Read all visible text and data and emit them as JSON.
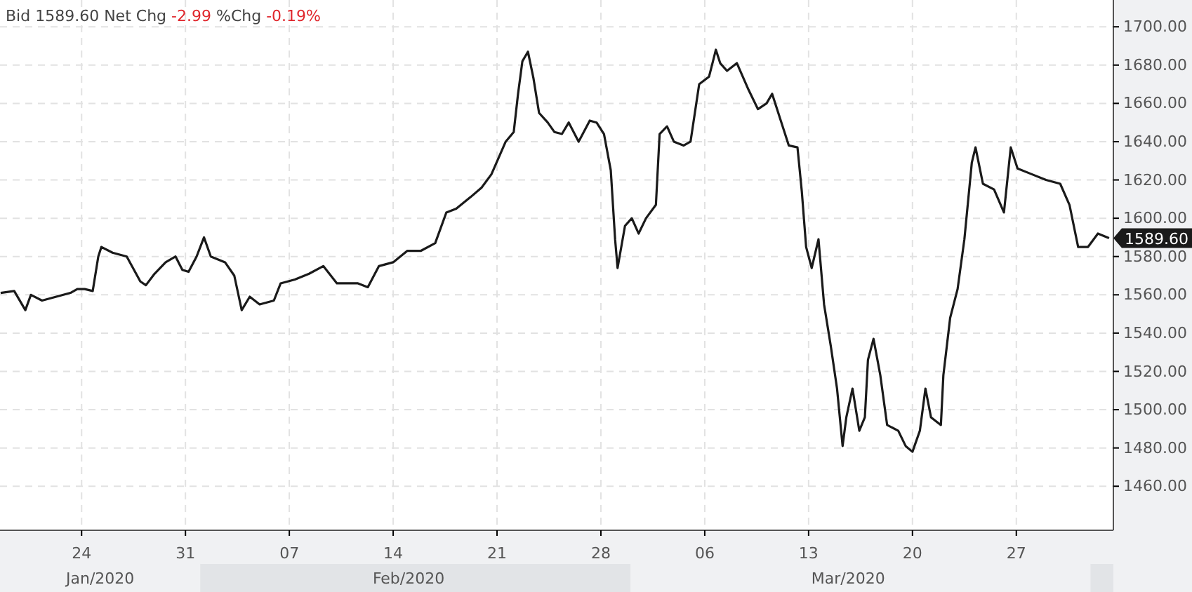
{
  "chart_data": {
    "type": "line",
    "title": "Bid 1589.60 Net Chg -2.99 %Chg -0.19%",
    "x": [
      "2020-01-18T13:00",
      "2020-01-19T11:00",
      "2020-01-20T05:00",
      "2020-01-20T14:00",
      "2020-01-21T08:00",
      "2020-01-22T07:00",
      "2020-01-23T06:00",
      "2020-01-23T17:00",
      "2020-01-24T05:00",
      "2020-01-24T18:00",
      "2020-01-25T03:00",
      "2020-01-25T08:00",
      "2020-01-26T02:00",
      "2020-01-27T01:00",
      "2020-01-27T23:00",
      "2020-01-28T08:00",
      "2020-01-28T22:00",
      "2020-01-29T16:00",
      "2020-01-30T08:00",
      "2020-01-30T19:00",
      "2020-01-31T05:00",
      "2020-01-31T18:00",
      "2020-02-01T06:00",
      "2020-02-01T17:00",
      "2020-02-02T16:00",
      "2020-02-03T07:00",
      "2020-02-03T19:00",
      "2020-02-04T08:00",
      "2020-02-05T00:00",
      "2020-02-05T23:00",
      "2020-02-06T10:00",
      "2020-02-07T09:00",
      "2020-02-08T08:00",
      "2020-02-09T07:00",
      "2020-02-10T05:00",
      "2020-02-11T15:00",
      "2020-02-12T07:00",
      "2020-02-13T01:00",
      "2020-02-14T00:00",
      "2020-02-14T23:00",
      "2020-02-15T21:00",
      "2020-02-16T20:00",
      "2020-02-17T14:00",
      "2020-02-18T06:00",
      "2020-02-19T05:00",
      "2020-02-19T23:00",
      "2020-02-20T15:00",
      "2020-02-21T14:00",
      "2020-02-22T03:00",
      "2020-02-22T10:00",
      "2020-02-22T17:00",
      "2020-02-23T02:00",
      "2020-02-23T11:00",
      "2020-02-23T20:00",
      "2020-02-24T10:00",
      "2020-02-24T21:00",
      "2020-02-25T09:00",
      "2020-02-25T20:00",
      "2020-02-26T12:00",
      "2020-02-27T06:00",
      "2020-02-27T17:00",
      "2020-02-28T05:00",
      "2020-02-28T16:00",
      "2020-02-28T23:00",
      "2020-02-29T03:00",
      "2020-02-29T15:00",
      "2020-03-01T02:00",
      "2020-03-01T13:00",
      "2020-03-02T01:00",
      "2020-03-02T17:00",
      "2020-03-02T23:00",
      "2020-03-03T11:00",
      "2020-03-03T22:00",
      "2020-03-04T14:00",
      "2020-03-05T01:00",
      "2020-03-05T15:00",
      "2020-03-06T07:00",
      "2020-03-06T18:00",
      "2020-03-07T01:00",
      "2020-03-07T12:00",
      "2020-03-08T04:00",
      "2020-03-08T23:00",
      "2020-03-09T14:00",
      "2020-03-10T04:00",
      "2020-03-10T13:00",
      "2020-03-11T03:00",
      "2020-03-11T16:00",
      "2020-03-12T06:00",
      "2020-03-12T13:00",
      "2020-03-12T20:00",
      "2020-03-13T05:00",
      "2020-03-13T16:00",
      "2020-03-14T01:00",
      "2020-03-14T12:00",
      "2020-03-14T22:00",
      "2020-03-15T07:00",
      "2020-03-15T13:00",
      "2020-03-15T23:00",
      "2020-03-16T10:00",
      "2020-03-16T19:00",
      "2020-03-17T00:00",
      "2020-03-17T09:00",
      "2020-03-17T20:00",
      "2020-03-18T07:00",
      "2020-03-19T01:00",
      "2020-03-19T13:00",
      "2020-03-20T00:00",
      "2020-03-20T12:00",
      "2020-03-20T21:00",
      "2020-03-21T06:00",
      "2020-03-21T22:00",
      "2020-03-22T02:00",
      "2020-03-22T13:00",
      "2020-03-23T01:00",
      "2020-03-23T12:00",
      "2020-03-24T00:00",
      "2020-03-24T06:00",
      "2020-03-24T18:00",
      "2020-03-25T12:00",
      "2020-03-26T04:00",
      "2020-03-26T15:00",
      "2020-03-27T02:00",
      "2020-03-28T01:00",
      "2020-03-29T00:00",
      "2020-03-29T23:00",
      "2020-03-30T14:00",
      "2020-03-31T04:00",
      "2020-03-31T20:00",
      "2020-04-01T12:00",
      "2020-04-02T06:00"
    ],
    "series": [
      {
        "color": "#1a1a1a",
        "values": [
          1561,
          1562,
          1552,
          1560,
          1557,
          1559,
          1561,
          1563,
          1563,
          1562,
          1580,
          1585,
          1582,
          1580,
          1567,
          1565,
          1571,
          1577,
          1580,
          1573,
          1572,
          1580,
          1590,
          1580,
          1577,
          1570,
          1552,
          1559,
          1555,
          1557,
          1566,
          1568,
          1571,
          1575,
          1566,
          1566,
          1564,
          1575,
          1577,
          1583,
          1583,
          1587,
          1603,
          1605,
          1611,
          1616,
          1623,
          1640,
          1645,
          1665,
          1682,
          1687,
          1673,
          1655,
          1650,
          1645,
          1644,
          1650,
          1640,
          1651,
          1650,
          1644,
          1625,
          1589,
          1574,
          1596,
          1600,
          1592,
          1600,
          1607,
          1644,
          1648,
          1640,
          1638,
          1640,
          1670,
          1674,
          1688,
          1681,
          1677,
          1681,
          1667,
          1657,
          1660,
          1665,
          1651,
          1638,
          1637,
          1614,
          1585,
          1574,
          1589,
          1555,
          1533,
          1511,
          1481,
          1496,
          1511,
          1489,
          1496,
          1526,
          1537,
          1518,
          1492,
          1489,
          1481,
          1478,
          1489,
          1511,
          1496,
          1492,
          1518,
          1548,
          1563,
          1589,
          1629,
          1637,
          1618,
          1615,
          1603,
          1637,
          1626,
          1623,
          1620,
          1618,
          1607,
          1585,
          1585,
          1592,
          1589.6
        ]
      }
    ],
    "xlim": [
      "2020-01-18T12:00",
      "2020-04-02T13:00"
    ],
    "xticks": [
      {
        "value": "2020-01-24",
        "label": "24"
      },
      {
        "value": "2020-01-31",
        "label": "31"
      },
      {
        "value": "2020-02-07",
        "label": "07"
      },
      {
        "value": "2020-02-14",
        "label": "14"
      },
      {
        "value": "2020-02-21",
        "label": "21"
      },
      {
        "value": "2020-02-28",
        "label": "28"
      },
      {
        "value": "2020-03-06",
        "label": "06"
      },
      {
        "value": "2020-03-13",
        "label": "13"
      },
      {
        "value": "2020-03-20",
        "label": "20"
      },
      {
        "value": "2020-03-27",
        "label": "27"
      }
    ],
    "x2lim": [
      "2020-01-18T12:00",
      "2020-04-02T13:00"
    ],
    "x2ticks": [
      {
        "value": "2020-01-25T06:00",
        "label": "Jan/2020"
      },
      {
        "value": "2020-02-15T01:00",
        "label": "Feb/2020"
      },
      {
        "value": "2020-03-15T16:00",
        "label": "Mar/2020"
      }
    ],
    "ylim": [
      1437,
      1714
    ],
    "yticks": [
      {
        "value": 1460,
        "label": "1460.00"
      },
      {
        "value": 1480,
        "label": "1480.00"
      },
      {
        "value": 1500,
        "label": "1500.00"
      },
      {
        "value": 1520,
        "label": "1520.00"
      },
      {
        "value": 1540,
        "label": "1540.00"
      },
      {
        "value": 1560,
        "label": "1560.00"
      },
      {
        "value": 1580,
        "label": "1580.00"
      },
      {
        "value": 1600,
        "label": "1600.00"
      },
      {
        "value": 1620,
        "label": "1620.00"
      },
      {
        "value": 1640,
        "label": "1640.00"
      },
      {
        "value": 1660,
        "label": "1660.00"
      },
      {
        "value": 1680,
        "label": "1680.00"
      },
      {
        "value": 1700,
        "label": "1700.00"
      }
    ],
    "annotations": [
      "1589.60"
    ],
    "grid": true,
    "line_style": "solid"
  }
}
